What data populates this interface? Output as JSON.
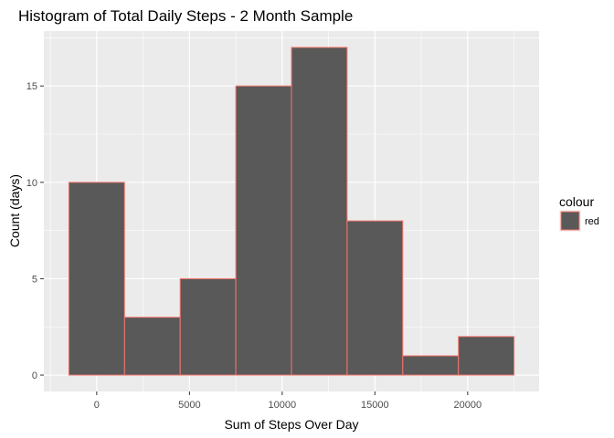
{
  "chart_data": {
    "type": "bar",
    "title": "Histogram of Total Daily Steps - 2 Month Sample",
    "xlabel": "Sum of Steps Over Day",
    "ylabel": "Count (days)",
    "bin_width": 3000,
    "bins": [
      {
        "start": -1500,
        "end": 1500,
        "count": 10
      },
      {
        "start": 1500,
        "end": 4500,
        "count": 3
      },
      {
        "start": 4500,
        "end": 7500,
        "count": 5
      },
      {
        "start": 7500,
        "end": 10500,
        "count": 15
      },
      {
        "start": 10500,
        "end": 13500,
        "count": 17
      },
      {
        "start": 13500,
        "end": 16500,
        "count": 8
      },
      {
        "start": 16500,
        "end": 19500,
        "count": 1
      },
      {
        "start": 19500,
        "end": 22500,
        "count": 2
      }
    ],
    "xlim": [
      -2850,
      23850
    ],
    "ylim": [
      -0.85,
      17.85
    ],
    "x_ticks": [
      0,
      5000,
      10000,
      15000,
      20000
    ],
    "x_tick_labels": [
      "0",
      "5000",
      "10000",
      "15000",
      "20000"
    ],
    "y_ticks": [
      0,
      5,
      10,
      15
    ],
    "y_tick_labels": [
      "0",
      "5",
      "10",
      "15"
    ],
    "grid": true,
    "legend": {
      "title": "colour",
      "entries": [
        "red"
      ],
      "placement": "right"
    },
    "colors": {
      "panel_background": "#ebebeb",
      "grid_major": "#ffffff",
      "bar_fill": "#595959",
      "bar_outline": "#f8766d"
    }
  }
}
